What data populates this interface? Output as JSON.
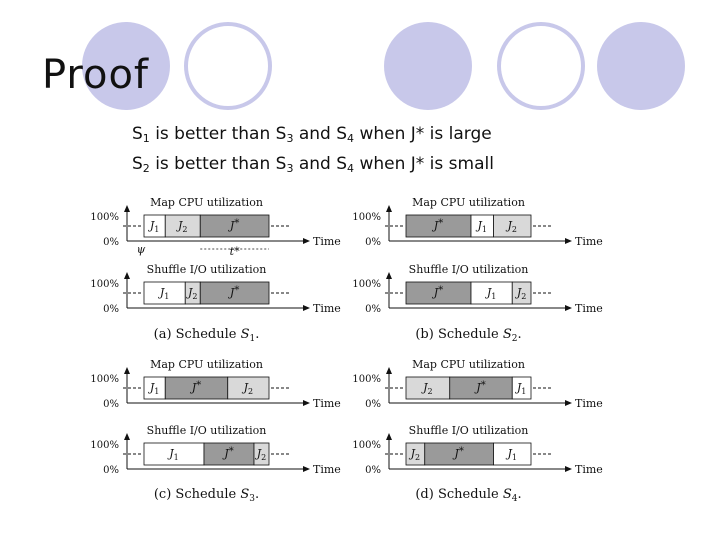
{
  "slide": {
    "title": "Proof",
    "bullets": [
      {
        "s_a": "1",
        "mid": " is better than S",
        "s_b": "3",
        "and": " and S",
        "s_c": "4",
        "tail": " when J* is large"
      },
      {
        "s_a": "2",
        "mid": " is better than S",
        "s_b": "3",
        "and": " and S",
        "s_c": "4",
        "tail": " when J* is small"
      }
    ]
  },
  "colors": {
    "decor_circle": "#c8c8ea",
    "decor_ring": "#c8c8ea",
    "job_light": "#d9d9d9",
    "job_dark": "#9a9a9a",
    "bar_empty": "#ffffff"
  },
  "common": {
    "map_title": "Map CPU utilization",
    "shuffle_title": "Shuffle I/O utilization",
    "y_top": "100%",
    "y_bottom": "0%",
    "x_label": "Time"
  },
  "schedules": [
    {
      "caption": "(a) Schedule S1.",
      "caption_prefix": "(a) Schedule ",
      "caption_sym": "S",
      "caption_sub": "1",
      "map": [
        {
          "label": "J1",
          "shade": "empty",
          "share": 0.17
        },
        {
          "label": "J2",
          "shade": "light",
          "share": 0.28
        },
        {
          "label": "J*",
          "shade": "dark",
          "share": 0.55
        }
      ],
      "shuffle": [
        {
          "label": "J1",
          "shade": "empty",
          "share": 0.33
        },
        {
          "label": "J2",
          "shade": "light",
          "share": 0.12
        },
        {
          "label": "J*",
          "shade": "dark",
          "share": 0.55
        }
      ],
      "marker_psi": "ψ",
      "marker_t": "t*"
    },
    {
      "caption": "(b) Schedule S2.",
      "caption_prefix": "(b) Schedule ",
      "caption_sym": "S",
      "caption_sub": "2",
      "map": [
        {
          "label": "J*",
          "shade": "dark",
          "share": 0.52
        },
        {
          "label": "J1",
          "shade": "empty",
          "share": 0.18
        },
        {
          "label": "J2",
          "shade": "light",
          "share": 0.3
        }
      ],
      "shuffle": [
        {
          "label": "J*",
          "shade": "dark",
          "share": 0.52
        },
        {
          "label": "J1",
          "shade": "empty",
          "share": 0.33
        },
        {
          "label": "J2",
          "shade": "light",
          "share": 0.15
        }
      ]
    },
    {
      "caption": "(c) Schedule S3.",
      "caption_prefix": "(c) Schedule ",
      "caption_sym": "S",
      "caption_sub": "3",
      "map": [
        {
          "label": "J1",
          "shade": "empty",
          "share": 0.17
        },
        {
          "label": "J*",
          "shade": "dark",
          "share": 0.5
        },
        {
          "label": "J2",
          "shade": "light",
          "share": 0.33
        }
      ],
      "shuffle": [
        {
          "label": "J1",
          "shade": "empty",
          "share": 0.48
        },
        {
          "label": "J*",
          "shade": "dark",
          "share": 0.4
        },
        {
          "label": "J2",
          "shade": "light",
          "share": 0.12
        }
      ]
    },
    {
      "caption": "(d) Schedule S4.",
      "caption_prefix": "(d) Schedule ",
      "caption_sym": "S",
      "caption_sub": "4",
      "map": [
        {
          "label": "J2",
          "shade": "light",
          "share": 0.35
        },
        {
          "label": "J*",
          "shade": "dark",
          "share": 0.5
        },
        {
          "label": "J1",
          "shade": "empty",
          "share": 0.15
        }
      ],
      "shuffle": [
        {
          "label": "J2",
          "shade": "light",
          "share": 0.15
        },
        {
          "label": "J*",
          "shade": "dark",
          "share": 0.55
        },
        {
          "label": "J1",
          "shade": "empty",
          "share": 0.3
        }
      ]
    }
  ]
}
